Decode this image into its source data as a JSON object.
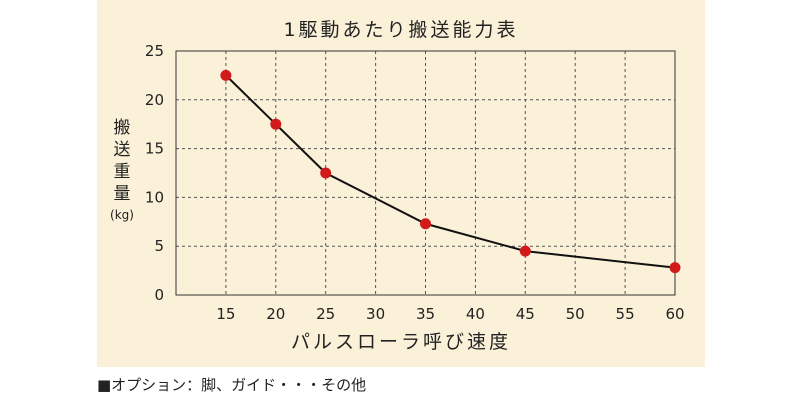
{
  "footnote": "■オプション：脚、ガイド・・・その他",
  "chart_data": {
    "type": "line",
    "title": "1駆動あたり搬送能力表",
    "xlabel": "パルスローラ呼び速度",
    "ylabel": "搬送重量",
    "yunit": "(kg)",
    "xticks": [
      15,
      20,
      25,
      30,
      35,
      40,
      45,
      50,
      55,
      60
    ],
    "yticks": [
      0,
      5,
      10,
      15,
      20,
      25
    ],
    "xlim": [
      10,
      60
    ],
    "ylim": [
      0,
      25
    ],
    "grid": true,
    "x": [
      15,
      20,
      25,
      35,
      45,
      60
    ],
    "series": [
      {
        "values": [
          22.5,
          17.5,
          12.5,
          7.3,
          4.5,
          2.8
        ]
      }
    ],
    "colors": {
      "panel": "#fbf1d9",
      "plot_area": "#fbf1d9",
      "grid": "#555555",
      "line": "#111111",
      "marker": "#d21a1a"
    }
  }
}
